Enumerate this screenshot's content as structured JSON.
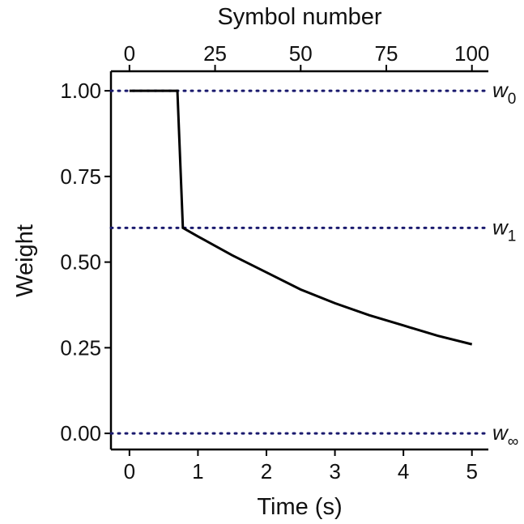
{
  "chart_data": {
    "type": "line",
    "xlabel": "Time (s)",
    "ylabel": "Weight",
    "x2label": "Symbol number",
    "x": [
      0,
      0.7,
      0.78,
      1,
      1.5,
      2,
      2.5,
      3,
      3.5,
      4,
      4.5,
      5
    ],
    "values": [
      1,
      1,
      0.6,
      0.575,
      0.52,
      0.47,
      0.42,
      0.38,
      0.345,
      0.315,
      0.285,
      0.26
    ],
    "color": "#000000",
    "xlim": [
      -0.27,
      5.24
    ],
    "xticks": [
      0,
      1,
      2,
      3,
      4,
      5
    ],
    "x2lim": [
      -5.4,
      104.8
    ],
    "x2ticks": [
      0,
      25,
      50,
      75,
      100
    ],
    "ylim": [
      -0.047,
      1.057
    ],
    "yticks": [
      {
        "value": 0,
        "label": "0.00"
      },
      {
        "value": 0.25,
        "label": "0.25"
      },
      {
        "value": 0.5,
        "label": "0.50"
      },
      {
        "value": 0.75,
        "label": "0.75"
      },
      {
        "value": 1,
        "label": "1.00"
      }
    ],
    "reference_lines": [
      {
        "y": 1,
        "text": "w",
        "sub": "0"
      },
      {
        "y": 0.6,
        "text": "w",
        "sub": "1"
      },
      {
        "y": 0,
        "text": "w",
        "sub": "∞"
      }
    ],
    "reference_color": "#1a1a6e"
  }
}
